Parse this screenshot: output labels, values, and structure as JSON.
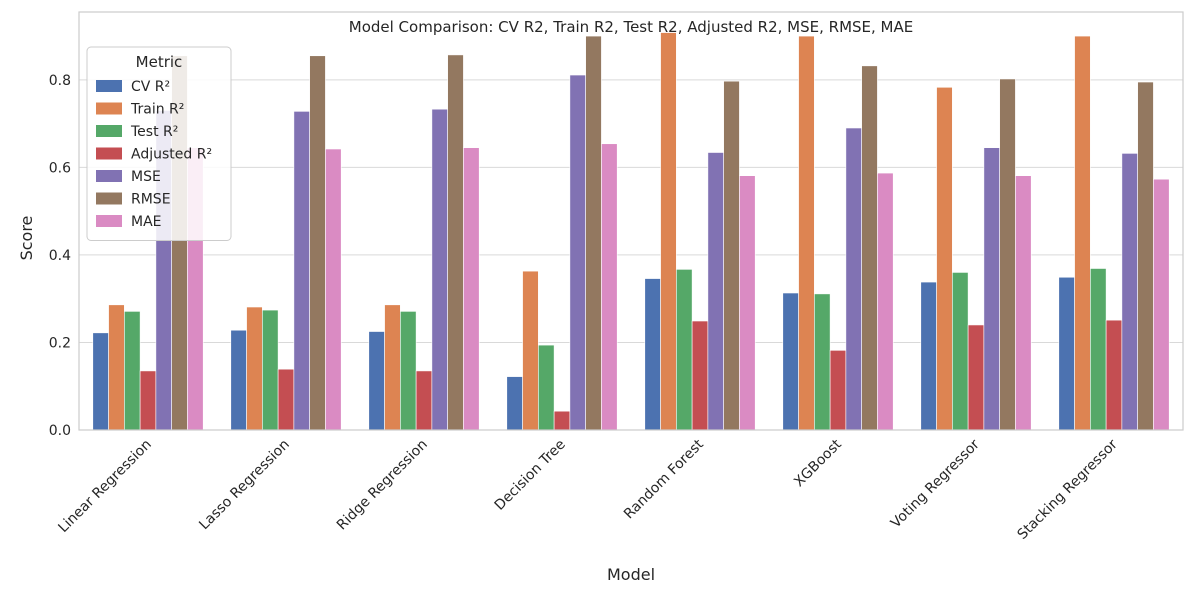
{
  "chart_data": {
    "type": "bar",
    "title": "Model Comparison: CV R2, Train R2, Test R2, Adjusted R2, MSE, RMSE, MAE",
    "xlabel": "Model",
    "ylabel": "Score",
    "ylim": [
      0,
      0.955
    ],
    "yticks": [
      0.0,
      0.2,
      0.4,
      0.6,
      0.8
    ],
    "ytick_labels": [
      "0.0",
      "0.2",
      "0.4",
      "0.6",
      "0.8"
    ],
    "grid": true,
    "legend": {
      "title": "Metric",
      "placement": "top-left"
    },
    "categories": [
      "Linear Regression",
      "Lasso Regression",
      "Ridge Regression",
      "Decision Tree",
      "Random Forest",
      "XGBoost",
      "Voting Regressor",
      "Stacking Regressor"
    ],
    "series": [
      {
        "name": "CV R²",
        "color": "#4c72b0",
        "values": [
          0.222,
          0.228,
          0.225,
          0.122,
          0.346,
          0.313,
          0.338,
          0.349
        ]
      },
      {
        "name": "Train R²",
        "color": "#dd8452",
        "values": [
          0.286,
          0.281,
          0.286,
          0.363,
          0.908,
          0.9,
          0.783,
          0.9
        ]
      },
      {
        "name": "Test R²",
        "color": "#55a868",
        "values": [
          0.271,
          0.274,
          0.271,
          0.194,
          0.367,
          0.311,
          0.36,
          0.369
        ]
      },
      {
        "name": "Adjusted R²",
        "color": "#c44e52",
        "values": [
          0.135,
          0.139,
          0.135,
          0.043,
          0.249,
          0.182,
          0.24,
          0.251
        ]
      },
      {
        "name": "MSE",
        "color": "#8172b3",
        "values": [
          0.73,
          0.728,
          0.733,
          0.811,
          0.634,
          0.69,
          0.645,
          0.632
        ]
      },
      {
        "name": "RMSE",
        "color": "#937860",
        "values": [
          0.855,
          0.855,
          0.857,
          0.9,
          0.797,
          0.832,
          0.802,
          0.795
        ]
      },
      {
        "name": "MAE",
        "color": "#da8bc3",
        "values": [
          0.645,
          0.642,
          0.645,
          0.654,
          0.581,
          0.587,
          0.581,
          0.573
        ]
      }
    ]
  }
}
